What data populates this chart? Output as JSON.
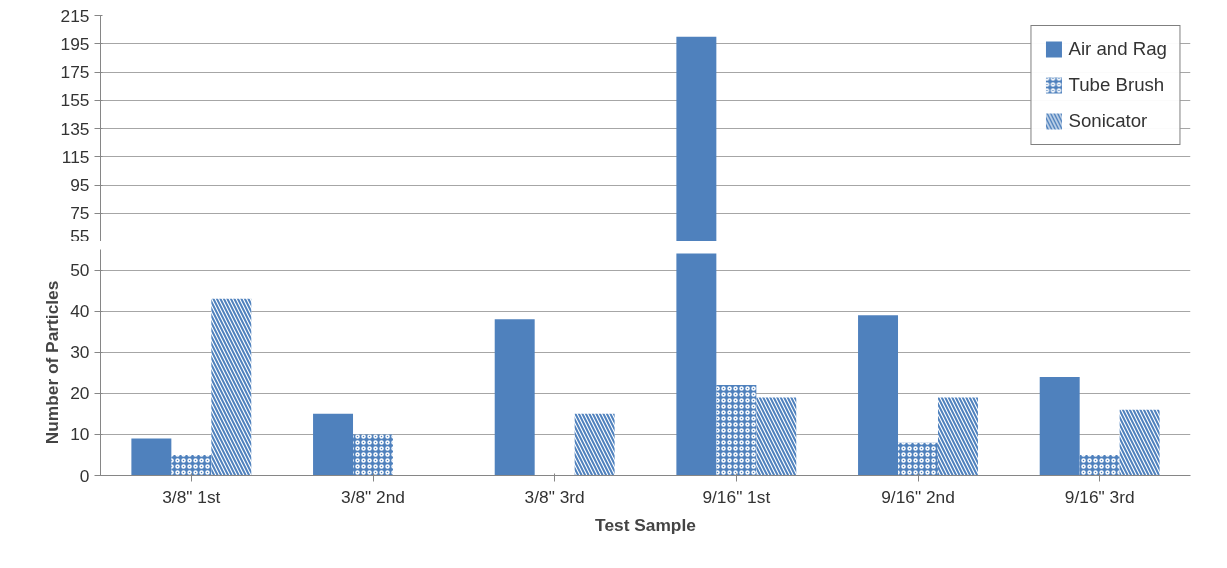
{
  "chart_data": [
    {
      "type": "bar",
      "categories": [
        null,
        null,
        null,
        null,
        null,
        null
      ],
      "series": [
        {
          "name": "Air and Rag",
          "color": "#4f81bd",
          "values": [
            null,
            null,
            null,
            200,
            null,
            null
          ]
        },
        {
          "name": "Tube Brush",
          "color": "#4f81bd",
          "values": [
            null,
            null,
            null,
            null,
            null,
            null
          ]
        },
        {
          "name": "Sonicator",
          "color": "#4f81bd",
          "values": [
            null,
            null,
            null,
            null,
            null,
            null
          ]
        }
      ],
      "ylim": [
        55,
        215
      ],
      "yticks": [
        55,
        75,
        95,
        115,
        135,
        155,
        175,
        195,
        215
      ],
      "tick_labels": "y",
      "grid": "y",
      "legend": "top right"
    },
    {
      "type": "bar",
      "xlabel": "Test Sample",
      "ylabel": "Number of Particles",
      "categories": [
        "3/8\" 1st",
        "3/8\" 2nd",
        "3/8\" 3rd",
        "9/16\" 1st",
        "9/16\" 2nd",
        "9/16\" 3rd"
      ],
      "series": [
        {
          "color": "#4f81bd",
          "values": [
            9,
            15,
            38,
            54,
            39,
            24
          ]
        },
        {
          "color": "#4f81bd",
          "values": [
            5,
            10,
            null,
            22,
            8,
            5
          ]
        },
        {
          "color": "#4f81bd",
          "values": [
            43,
            null,
            15,
            19,
            19,
            16
          ]
        }
      ],
      "ylim": [
        0,
        55
      ],
      "yticks": [
        0,
        10,
        20,
        30,
        40,
        50
      ],
      "grid": "y"
    }
  ]
}
